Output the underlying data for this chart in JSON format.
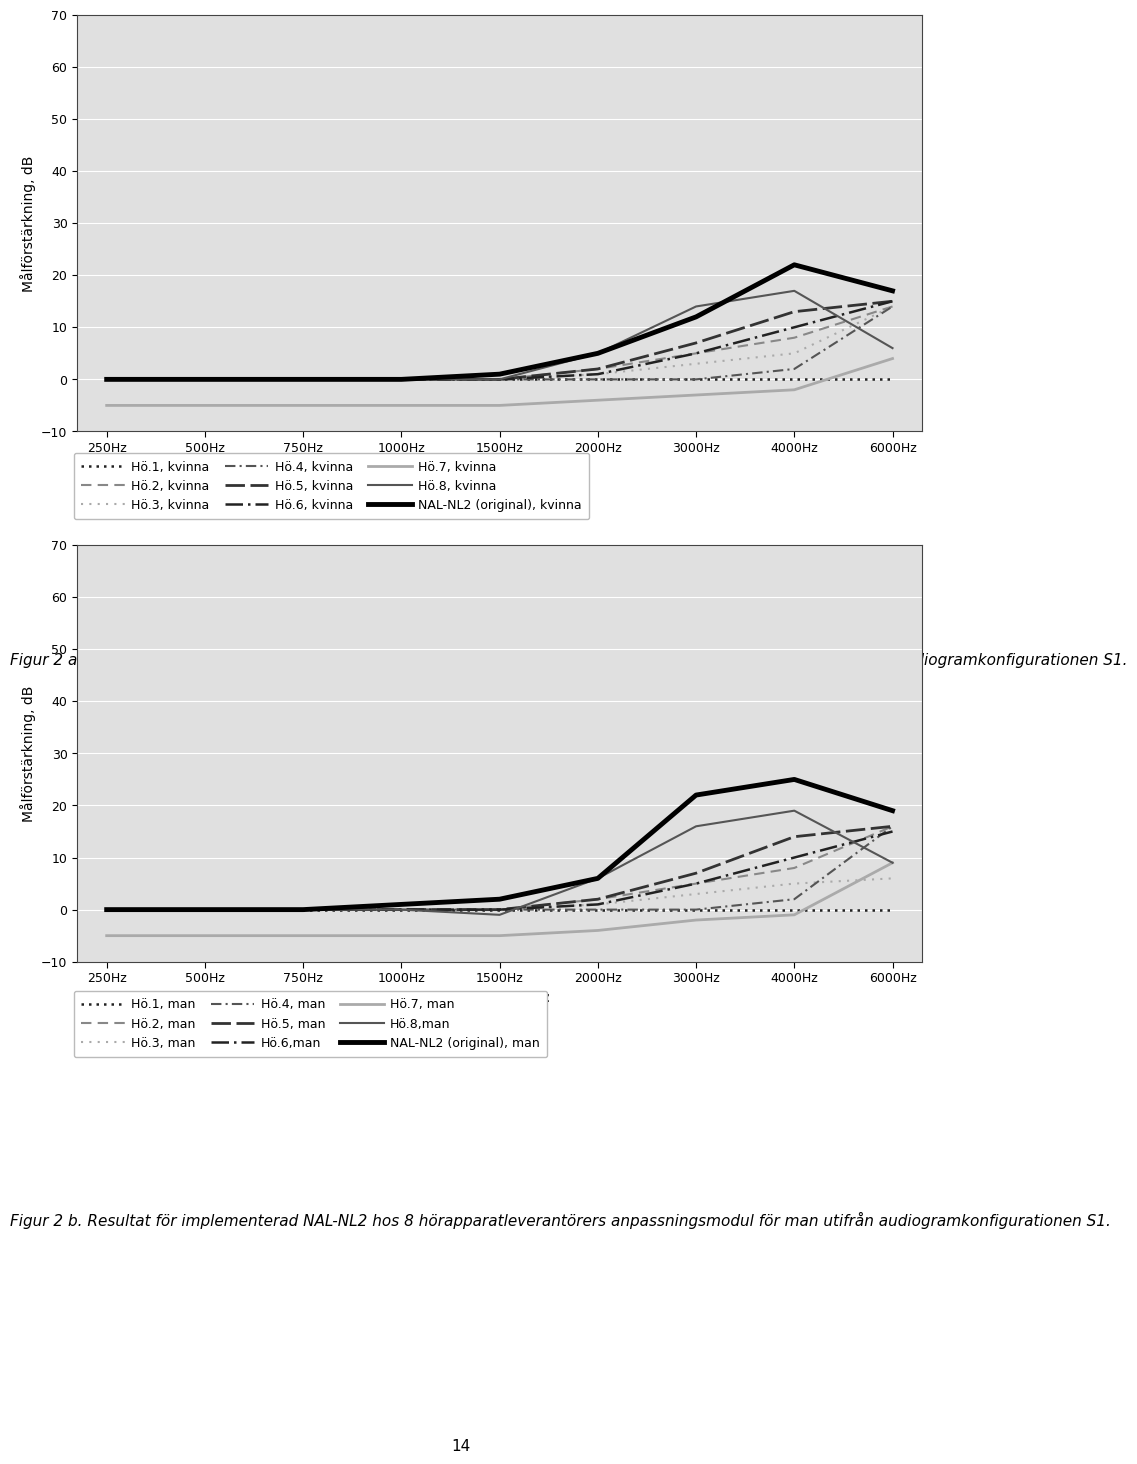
{
  "freqs": [
    250,
    500,
    750,
    1000,
    1500,
    2000,
    3000,
    4000,
    6000
  ],
  "freq_labels": [
    "250Hz",
    "500Hz",
    "750Hz",
    "1000Hz",
    "1500Hz",
    "2000Hz",
    "3000Hz",
    "4000Hz",
    "6000Hz"
  ],
  "ylim": [
    -10,
    70
  ],
  "yticks": [
    -10,
    0,
    10,
    20,
    30,
    40,
    50,
    60,
    70
  ],
  "ylabel": "Målförstärkning, dB",
  "xlabel": "Frekvens, Hz",
  "bg_color": "#e0e0e0",
  "kvinna": {
    "ho1": [
      0,
      0,
      0,
      0,
      0,
      0,
      0,
      0,
      0
    ],
    "ho2": [
      0,
      0,
      0,
      0,
      0,
      2,
      5,
      8,
      14
    ],
    "ho3": [
      0,
      0,
      0,
      0,
      0,
      1,
      3,
      5,
      14
    ],
    "ho4": [
      0,
      0,
      0,
      0,
      0,
      0,
      0,
      2,
      14
    ],
    "ho5": [
      0,
      0,
      0,
      0,
      0,
      2,
      7,
      13,
      15
    ],
    "ho6": [
      0,
      0,
      0,
      0,
      0,
      1,
      5,
      10,
      15
    ],
    "ho7": [
      -5,
      -5,
      -5,
      -5,
      -5,
      -4,
      -3,
      -2,
      4
    ],
    "ho8": [
      0,
      0,
      0,
      0,
      0,
      5,
      14,
      17,
      6
    ],
    "nal": [
      0,
      0,
      0,
      0,
      1,
      5,
      12,
      22,
      17
    ]
  },
  "man": {
    "ho1": [
      0,
      0,
      0,
      0,
      0,
      0,
      0,
      0,
      0
    ],
    "ho2": [
      0,
      0,
      0,
      0,
      0,
      2,
      5,
      8,
      16
    ],
    "ho3": [
      0,
      0,
      0,
      0,
      0,
      1,
      3,
      5,
      6
    ],
    "ho4": [
      0,
      0,
      0,
      0,
      0,
      0,
      0,
      2,
      16
    ],
    "ho5": [
      0,
      0,
      0,
      0,
      0,
      2,
      7,
      14,
      16
    ],
    "ho6": [
      0,
      0,
      0,
      0,
      0,
      1,
      5,
      10,
      15
    ],
    "ho7": [
      -5,
      -5,
      -5,
      -5,
      -5,
      -4,
      -2,
      -1,
      9
    ],
    "ho8": [
      0,
      0,
      0,
      0,
      -1,
      6,
      16,
      19,
      9
    ],
    "nal": [
      0,
      0,
      0,
      1,
      2,
      6,
      22,
      25,
      19
    ]
  },
  "legend_kvinna": [
    {
      "label": "Hö.1, kvinna",
      "linestyle": "dotted",
      "color": "#222222",
      "linewidth": 1.8,
      "dashes": [
        1,
        2
      ]
    },
    {
      "label": "Hö.2, kvinna",
      "linestyle": "dashed",
      "color": "#888888",
      "linewidth": 1.5,
      "dashes": [
        5,
        3
      ]
    },
    {
      "label": "Hö.3, kvinna",
      "linestyle": "dotted",
      "color": "#aaaaaa",
      "linewidth": 1.5,
      "dashes": [
        1,
        3
      ]
    },
    {
      "label": "Hö.4, kvinna",
      "linestyle": "dashdot",
      "color": "#555555",
      "linewidth": 1.5,
      "dashes": [
        5,
        2,
        1,
        2
      ]
    },
    {
      "label": "Hö.5, kvinna",
      "linestyle": "dashed",
      "color": "#333333",
      "linewidth": 2.0,
      "dashes": [
        7,
        2
      ]
    },
    {
      "label": "Hö.6, kvinna",
      "linestyle": "dashdot",
      "color": "#222222",
      "linewidth": 1.8,
      "dashes": [
        7,
        2,
        1,
        2
      ]
    },
    {
      "label": "Hö.7, kvinna",
      "linestyle": "solid",
      "color": "#aaaaaa",
      "linewidth": 2.0,
      "dashes": null
    },
    {
      "label": "Hö.8, kvinna",
      "linestyle": "solid",
      "color": "#555555",
      "linewidth": 1.5,
      "dashes": null
    },
    {
      "label": "NAL-NL2 (original), kvinna",
      "linestyle": "solid",
      "color": "#000000",
      "linewidth": 3.5,
      "dashes": null
    }
  ],
  "legend_man": [
    {
      "label": "Hö.1, man",
      "linestyle": "dotted",
      "color": "#222222",
      "linewidth": 1.8,
      "dashes": [
        1,
        2
      ]
    },
    {
      "label": "Hö.2, man",
      "linestyle": "dashed",
      "color": "#888888",
      "linewidth": 1.5,
      "dashes": [
        5,
        3
      ]
    },
    {
      "label": "Hö.3, man",
      "linestyle": "dotted",
      "color": "#aaaaaa",
      "linewidth": 1.5,
      "dashes": [
        1,
        3
      ]
    },
    {
      "label": "Hö.4, man",
      "linestyle": "dashdot",
      "color": "#555555",
      "linewidth": 1.5,
      "dashes": [
        5,
        2,
        1,
        2
      ]
    },
    {
      "label": "Hö.5, man",
      "linestyle": "dashed",
      "color": "#333333",
      "linewidth": 2.0,
      "dashes": [
        7,
        2
      ]
    },
    {
      "label": "Hö.6,man",
      "linestyle": "dashdot",
      "color": "#222222",
      "linewidth": 1.8,
      "dashes": [
        7,
        2,
        1,
        2
      ]
    },
    {
      "label": "Hö.7, man",
      "linestyle": "solid",
      "color": "#aaaaaa",
      "linewidth": 2.0,
      "dashes": null
    },
    {
      "label": "Hö.8,man",
      "linestyle": "solid",
      "color": "#555555",
      "linewidth": 1.5,
      "dashes": null
    },
    {
      "label": "NAL-NL2 (original), man",
      "linestyle": "solid",
      "color": "#000000",
      "linewidth": 3.5,
      "dashes": null
    }
  ],
  "caption_a": "Figur 2 a. Resultat för implementerad NAL-NL2 hos 8 hörapparatleverantörers anpassningsmodul för kvinna utifrån audiogramkonfigurationen S1.",
  "caption_b": "Figur 2 b. Resultat för implementerad NAL-NL2 hos 8 hörapparatleverantörers anpassningsmodul för man utifrån audiogramkonfigurationen S1.",
  "page_number": "14"
}
